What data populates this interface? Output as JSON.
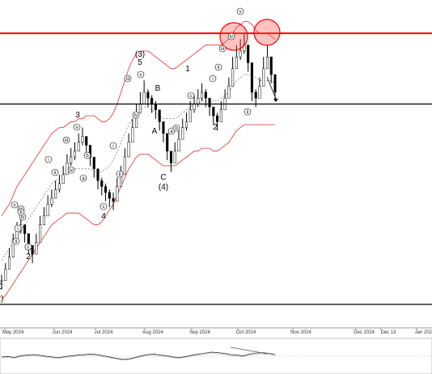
{
  "chart_data": {
    "type": "candlestick",
    "title": "",
    "xlabel": "",
    "ylabel": "",
    "x_ticks": [
      "May 2024",
      "Jun 2024",
      "Jul 2024",
      "Aug 2024",
      "Sep 2024",
      "Oct 2024",
      "Nov 2024",
      "Dec 2024",
      "Dec 13",
      "Jan 2025"
    ],
    "price_ylim": [
      0,
      100
    ],
    "price_close": [
      8,
      12,
      16,
      22,
      25,
      27,
      24,
      20,
      17,
      21,
      27,
      30,
      34,
      36,
      39,
      41,
      44,
      48,
      50,
      52,
      55,
      57,
      54,
      50,
      46,
      42,
      40,
      38,
      36,
      35,
      40,
      44,
      50,
      55,
      60,
      65,
      68,
      72,
      70,
      68,
      66,
      62,
      58,
      52,
      48,
      52,
      56,
      60,
      62,
      66,
      68,
      70,
      72,
      70,
      67,
      64,
      62,
      66,
      70,
      74,
      80,
      84,
      86,
      88,
      82,
      72,
      70,
      74,
      80,
      84,
      78,
      72
    ],
    "price_high": [
      10,
      14,
      19,
      24,
      28,
      29,
      27,
      23,
      20,
      24,
      30,
      33,
      37,
      39,
      42,
      44,
      47,
      51,
      53,
      55,
      58,
      60,
      57,
      53,
      49,
      45,
      43,
      41,
      39,
      38,
      43,
      47,
      53,
      58,
      63,
      68,
      72,
      76,
      73,
      71,
      69,
      65,
      61,
      55,
      51,
      55,
      59,
      63,
      65,
      69,
      71,
      73,
      75,
      73,
      70,
      67,
      65,
      69,
      73,
      77,
      84,
      88,
      90,
      92,
      86,
      76,
      73,
      77,
      84,
      88,
      81,
      75
    ],
    "price_low": [
      5,
      9,
      13,
      19,
      22,
      24,
      21,
      17,
      14,
      18,
      24,
      27,
      31,
      33,
      36,
      38,
      41,
      45,
      47,
      49,
      52,
      54,
      51,
      47,
      43,
      39,
      37,
      35,
      33,
      32,
      37,
      41,
      47,
      52,
      57,
      62,
      65,
      69,
      67,
      65,
      63,
      59,
      55,
      49,
      45,
      49,
      53,
      57,
      59,
      63,
      65,
      67,
      69,
      67,
      64,
      61,
      59,
      63,
      67,
      71,
      77,
      81,
      83,
      85,
      79,
      69,
      67,
      71,
      77,
      81,
      75,
      69
    ],
    "bollinger_upper": [
      30,
      32,
      34,
      37,
      40,
      42,
      44,
      46,
      48,
      50,
      52,
      54,
      56,
      58,
      59,
      60,
      60,
      61,
      62,
      62,
      63,
      63,
      64,
      64,
      64,
      63,
      62,
      62,
      63,
      65,
      68,
      72,
      76,
      80,
      83,
      85,
      86,
      86,
      86,
      85,
      84,
      83,
      82,
      81,
      80,
      80,
      81,
      82,
      83,
      84,
      85,
      86,
      87,
      88,
      88,
      88,
      88,
      88,
      89,
      90,
      92,
      94,
      95,
      96,
      96,
      95,
      93,
      92,
      92,
      92,
      91,
      90
    ],
    "bollinger_middle": [
      15,
      17,
      19,
      21,
      23,
      25,
      27,
      29,
      31,
      33,
      35,
      37,
      39,
      41,
      42,
      43,
      44,
      45,
      46,
      46,
      46,
      46,
      46,
      46,
      45,
      45,
      45,
      46,
      47,
      49,
      52,
      55,
      58,
      61,
      63,
      65,
      66,
      67,
      67,
      66,
      65,
      64,
      63,
      63,
      63,
      63,
      64,
      65,
      66,
      67,
      68,
      68,
      69,
      69,
      69,
      69,
      69,
      70,
      71,
      72,
      74,
      76,
      77,
      78,
      78,
      78,
      77,
      76,
      76,
      76,
      76,
      75
    ],
    "bollinger_lower": [
      2,
      3,
      5,
      7,
      9,
      11,
      13,
      15,
      17,
      19,
      21,
      23,
      25,
      27,
      28,
      29,
      30,
      31,
      31,
      31,
      31,
      30,
      29,
      28,
      27,
      27,
      28,
      30,
      32,
      34,
      37,
      40,
      43,
      46,
      48,
      50,
      51,
      51,
      51,
      50,
      49,
      48,
      47,
      47,
      47,
      47,
      48,
      49,
      50,
      51,
      52,
      52,
      53,
      53,
      53,
      52,
      52,
      53,
      54,
      55,
      57,
      59,
      60,
      61,
      61,
      61,
      61,
      61,
      61,
      61,
      61,
      61
    ],
    "horizontal_lines": [
      {
        "value": 92,
        "color": "#ff0000"
      },
      {
        "value": 68,
        "color": "#000000"
      },
      {
        "value": 0,
        "color": "#000000"
      }
    ],
    "wave_labels": [
      "(3)",
      "5",
      "B",
      "A",
      "C",
      "(4)",
      "1",
      "2",
      "3",
      "4",
      "2",
      "C",
      "2)"
    ],
    "circle_labels": [
      "i",
      "ii",
      "iii",
      "iv",
      "v",
      "a",
      "b",
      "c",
      "i",
      "ii",
      "iii",
      "iv",
      "v",
      "a",
      "b",
      "c",
      "i",
      "ii",
      "iii",
      "iv",
      "v",
      "a",
      "b",
      "c",
      "i",
      "ii",
      "iii",
      "iv",
      "v",
      "ii"
    ],
    "indicator_values": [
      0.5,
      0.52,
      0.48,
      0.55,
      0.58,
      0.6,
      0.57,
      0.53,
      0.5,
      0.47,
      0.52,
      0.55,
      0.58,
      0.6,
      0.62,
      0.6,
      0.55,
      0.5,
      0.45,
      0.4,
      0.42,
      0.48,
      0.55,
      0.6,
      0.62,
      0.58,
      0.55,
      0.5,
      0.48,
      0.52,
      0.58,
      0.62,
      0.66,
      0.7,
      0.68,
      0.65,
      0.6,
      0.58,
      0.55,
      0.62,
      0.66,
      0.68,
      0.65,
      0.6
    ],
    "grid": false,
    "legend": "none"
  }
}
